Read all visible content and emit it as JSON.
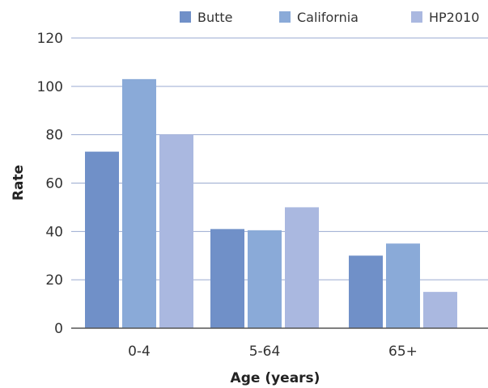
{
  "chart_data": {
    "type": "bar",
    "title": "",
    "xlabel": "Age (years)",
    "ylabel": "Rate",
    "categories": [
      "0-4",
      "5-64",
      "65+"
    ],
    "series": [
      {
        "name": "Butte",
        "values": [
          73,
          41,
          30
        ],
        "color": "#7090c8"
      },
      {
        "name": "California",
        "values": [
          103,
          40.5,
          35
        ],
        "color": "#8aaad8"
      },
      {
        "name": "HP2010",
        "values": [
          80,
          50,
          15
        ],
        "color": "#aab8e0"
      }
    ],
    "ylim": [
      0,
      120
    ],
    "yticks": [
      0,
      20,
      40,
      60,
      80,
      100,
      120
    ],
    "grid": true,
    "legend_position": "top"
  }
}
